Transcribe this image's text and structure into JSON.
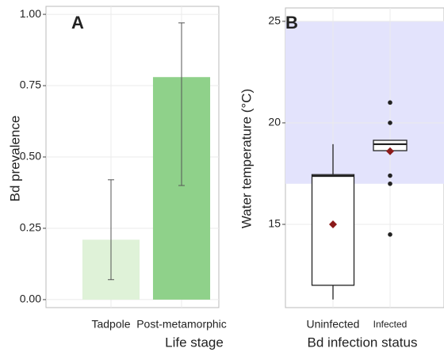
{
  "chart_data": [
    {
      "type": "bar",
      "label": "A",
      "ylabel": "Bd prevalence",
      "xlabel": "Life stage",
      "categories": [
        "Tadpole",
        "Post-metamorphic"
      ],
      "values": [
        0.21,
        0.78
      ],
      "lower": [
        0.07,
        0.4
      ],
      "upper": [
        0.42,
        0.97
      ],
      "colors": [
        "#dff2d8",
        "#8fd18a"
      ],
      "ylim": [
        -0.028,
        1.028
      ],
      "yticks": [
        {
          "value": 0,
          "label": "0.00"
        },
        {
          "value": 0.25,
          "label": "0.25"
        },
        {
          "value": 0.5,
          "label": "0.50"
        },
        {
          "value": 0.75,
          "label": "0.75"
        },
        {
          "value": 1,
          "label": "1.00"
        }
      ],
      "grid": true
    },
    {
      "type": "box",
      "label": "B",
      "ylabel": "Water temperature (°C)",
      "xlabel": "Bd infection status",
      "categories": [
        "Uninfected",
        "Infected"
      ],
      "whisker_low": [
        11.3,
        18.6
      ],
      "q1": [
        12.0,
        18.63
      ],
      "median": [
        17.38,
        18.95
      ],
      "q3": [
        17.45,
        19.14
      ],
      "whisker_high": [
        18.95,
        19.14
      ],
      "mean": [
        15.0,
        18.6
      ],
      "outliers": [
        [],
        [
          21.0,
          20.0,
          17.4,
          17.0,
          14.5
        ]
      ],
      "box_color": "#222222",
      "mean_color": "#8b1a1a",
      "shade": {
        "ymin": 17,
        "ymax": 25,
        "color": "#e3e3fc"
      },
      "ylim": [
        10.9,
        25.66
      ],
      "yticks": [
        15,
        20,
        25
      ],
      "grid": true
    }
  ]
}
